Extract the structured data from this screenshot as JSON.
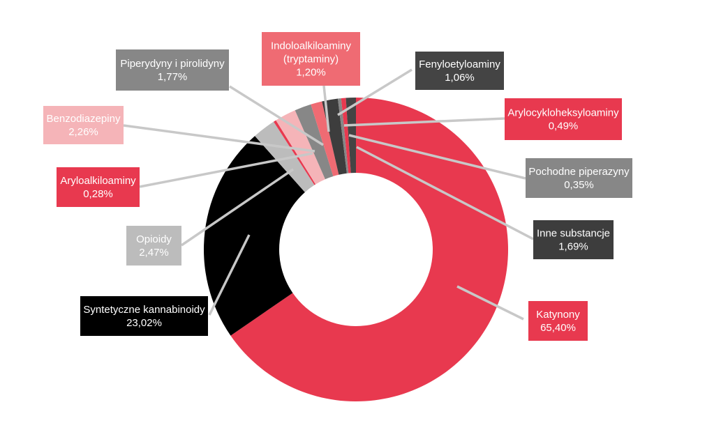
{
  "chart_data": {
    "type": "pie",
    "variant": "donut",
    "title": "",
    "legend": "none",
    "slices": [
      {
        "label": "Katynony",
        "value_text": "65,40%",
        "value": 65.4,
        "color": "#e8394f",
        "text_color": "#ffffff"
      },
      {
        "label": "Syntetyczne kannabinoidy",
        "value_text": "23,02%",
        "value": 23.02,
        "color": "#000000",
        "text_color": "#ffffff"
      },
      {
        "label": "Opioidy",
        "value_text": "2,47%",
        "value": 2.47,
        "color": "#bcbcbc",
        "text_color": "#ffffff"
      },
      {
        "label": "Aryloalkiloaminy",
        "value_text": "0,28%",
        "value": 0.28,
        "color": "#e8394f",
        "text_color": "#ffffff"
      },
      {
        "label": "Benzodiazepiny",
        "value_text": "2,26%",
        "value": 2.26,
        "color": "#f5b4b8",
        "text_color": "#ffffff"
      },
      {
        "label": "Piperydyny i pirolidyny",
        "value_text": "1,77%",
        "value": 1.77,
        "color": "#878787",
        "text_color": "#ffffff"
      },
      {
        "label": "Indoloalkiloaminy\n(tryptaminy)",
        "value_text": "1,20%",
        "value": 1.2,
        "color": "#ef6b73",
        "text_color": "#ffffff"
      },
      {
        "label": "Inne substancje",
        "value_text": "1,69%",
        "value": 1.69,
        "color": "#3d3d3d",
        "text_color": "#ffffff"
      },
      {
        "label": "Pochodne piperazyny",
        "value_text": "0,35%",
        "value": 0.35,
        "color": "#878787",
        "text_color": "#ffffff"
      },
      {
        "label": "Arylocykloheksyloaminy",
        "value_text": "0,49%",
        "value": 0.49,
        "color": "#e8394f",
        "text_color": "#ffffff"
      },
      {
        "label": "Fenyloetyloaminy",
        "value_text": "1,06%",
        "value": 1.06,
        "color": "#444444",
        "text_color": "#ffffff"
      }
    ],
    "colors": {
      "leader_line": "#c8c8c8"
    }
  }
}
